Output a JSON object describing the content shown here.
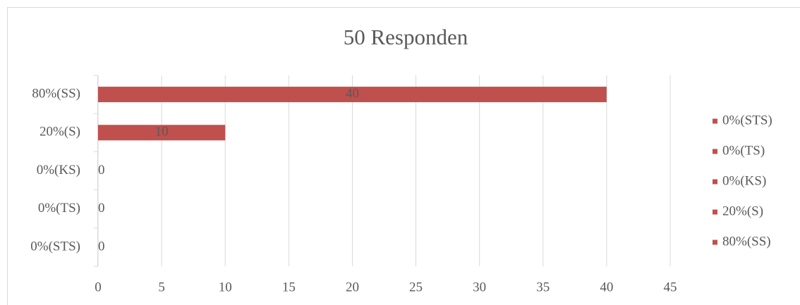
{
  "chart_data": {
    "type": "bar",
    "orientation": "horizontal",
    "title": "50 Responden",
    "categories": [
      "0%(STS)",
      "0%(TS)",
      "0%(KS)",
      "20%(S)",
      "80%(SS)"
    ],
    "values": [
      0,
      0,
      0,
      10,
      40
    ],
    "color": "#c0504d",
    "xlim": [
      0,
      45
    ],
    "xticks": [
      0,
      5,
      10,
      15,
      20,
      25,
      30,
      35,
      40,
      45
    ],
    "grid": true,
    "legend": "right"
  }
}
